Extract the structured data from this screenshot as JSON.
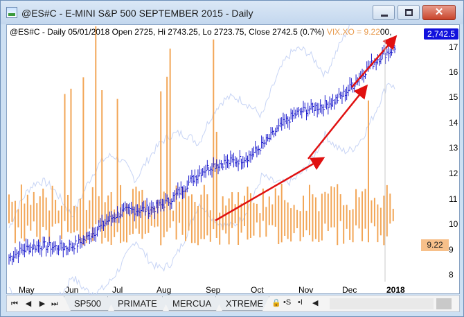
{
  "window": {
    "title": "@ES#C - E-MINI S&P 500 SEPTEMBER 2015 - Daily",
    "close_glyph": "✕"
  },
  "chart": {
    "info_prefix": "@ES#C - Daily 05/01/2018 Open 2725, Hi 2743.25, Lo 2723.75, Close 2742.5 (0.7%)",
    "info_vix": "VIX.XO = 9.22",
    "info_suffix": "00,",
    "price_tag": "2,742.5",
    "vix_tag": "9.22",
    "colors": {
      "price_bars": "#1a1acc",
      "vix_bars": "#f2a657",
      "bands": "#c7d4f5",
      "arrows": "#e01010"
    }
  },
  "chart_data": {
    "type": "bar",
    "title": "@ES#C - E-MINI S&P 500 SEPTEMBER 2015 - Daily",
    "xlabel": "",
    "ylabel": "",
    "x_ticks": [
      "May",
      "Jun",
      "Jul",
      "Aug",
      "Sep",
      "Oct",
      "Nov",
      "Dec",
      "2018"
    ],
    "y_ticks": [
      "17",
      "16",
      "15",
      "14",
      "13",
      "12",
      "11",
      "10",
      "9",
      "8"
    ],
    "ylim": [
      7.6,
      17.6
    ],
    "series": [
      {
        "name": "@ES#C",
        "kind": "ohlc",
        "y_start": 8.8,
        "y_end": 17.1
      },
      {
        "name": "VIX.XO",
        "kind": "bar",
        "last": 9.22
      }
    ],
    "annotations": [
      {
        "type": "arrow",
        "from": [
          "Sep",
          10.3
        ],
        "to": [
          "Nov",
          12.8
        ]
      },
      {
        "type": "arrow",
        "from": [
          "Nov",
          12.8
        ],
        "to": [
          "Dec",
          15.7
        ]
      },
      {
        "type": "arrow",
        "from": [
          "Dec",
          15.7
        ],
        "to": [
          "2018",
          17.7
        ]
      }
    ],
    "grid": false
  },
  "tabs": {
    "nav": [
      "⏮",
      "◀",
      "▶",
      "⏭"
    ],
    "items": [
      "SP500",
      "PRIMATE",
      "MERCUA",
      "XTREME"
    ],
    "tools": [
      "🔒",
      "•S",
      "•I",
      "◀"
    ]
  }
}
